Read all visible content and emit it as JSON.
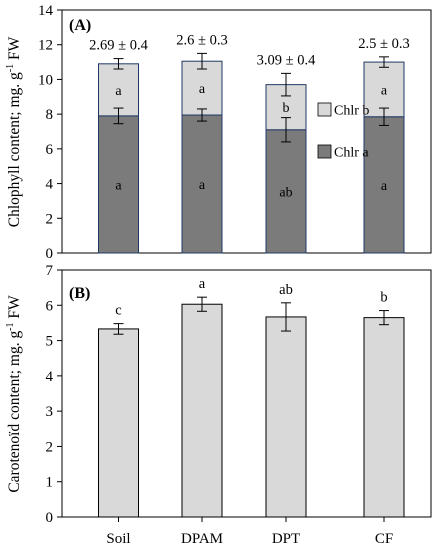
{
  "chart_data": [
    {
      "panel_label": "(A)",
      "type": "bar",
      "stacked": true,
      "categories": [
        "Soil",
        "DPAM",
        "DPT",
        "CF"
      ],
      "ylabel": "Chlophyll content; mg. g",
      "ylabel_sup": "-1",
      "ylabel_tail": " FW",
      "ylim": [
        0,
        14
      ],
      "yticks": [
        0,
        2,
        4,
        6,
        8,
        10,
        12,
        14
      ],
      "ytick_labels": [
        "0",
        "2",
        "4",
        "6",
        "8",
        "10",
        "12",
        "14"
      ],
      "grid": false,
      "legend_placement": "right, inside",
      "ratio_labels": [
        "2.69 ± 0.4",
        "2.6 ± 0.3",
        "3.09 ± 0.4",
        "2.5 ± 0.3"
      ],
      "series": [
        {
          "name": "Chlr a",
          "color": "#7b7b7b",
          "values": [
            7.9,
            7.95,
            7.1,
            7.85
          ],
          "errors": [
            0.45,
            0.35,
            0.7,
            0.5
          ],
          "letters": [
            "a",
            "a",
            "ab",
            "a"
          ]
        },
        {
          "name": "Chlr b",
          "color": "#d9d9d9",
          "values": [
            3.0,
            3.1,
            2.6,
            3.15
          ],
          "errors": [
            0.3,
            0.45,
            0.65,
            0.3
          ],
          "letters": [
            "a",
            "a",
            "b",
            "a"
          ]
        }
      ]
    },
    {
      "panel_label": "(B)",
      "type": "bar",
      "categories": [
        "Soil",
        "DPAM",
        "DPT",
        "CF"
      ],
      "ylabel": "Carotenoïd content; mg. g",
      "ylabel_sup": "-1",
      "ylabel_tail": " FW",
      "ylim": [
        0,
        7
      ],
      "yticks": [
        0,
        1,
        2,
        3,
        4,
        5,
        6,
        7
      ],
      "ytick_labels": [
        "0",
        "1",
        "2",
        "3",
        "4",
        "5",
        "6",
        "7"
      ],
      "grid": false,
      "series": [
        {
          "color": "#d9d9d9",
          "values": [
            5.33,
            6.03,
            5.67,
            5.65
          ],
          "errors": [
            0.15,
            0.2,
            0.4,
            0.2
          ],
          "letters": [
            "c",
            "a",
            "ab",
            "b"
          ]
        }
      ]
    }
  ]
}
